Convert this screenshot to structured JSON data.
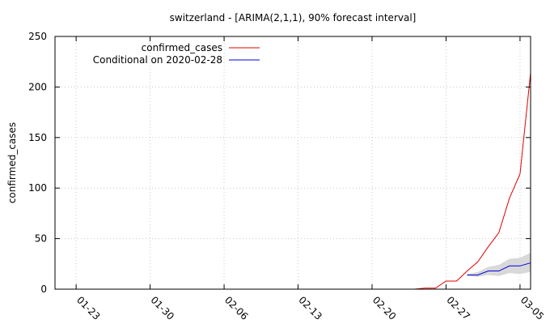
{
  "chart_data": {
    "type": "line",
    "title": "switzerland -  [ARIMA(2,1,1), 90% forecast interval]",
    "xlabel": "",
    "ylabel": "confirmed_cases",
    "x_start": "2020-01-21",
    "x_end": "2020-03-06",
    "ylim": [
      0,
      250
    ],
    "yticks": [
      0,
      50,
      100,
      150,
      200,
      250
    ],
    "xticks": [
      {
        "date": "2020-01-23",
        "label": "01-23"
      },
      {
        "date": "2020-01-30",
        "label": "01-30"
      },
      {
        "date": "2020-02-06",
        "label": "02-06"
      },
      {
        "date": "2020-02-13",
        "label": "02-13"
      },
      {
        "date": "2020-02-20",
        "label": "02-20"
      },
      {
        "date": "2020-02-27",
        "label": "02-27"
      },
      {
        "date": "2020-03-05",
        "label": "03-05"
      }
    ],
    "grid": true,
    "legend_position": "top-left",
    "series": [
      {
        "name": "confirmed_cases",
        "color": "#e00000",
        "points": [
          [
            "2020-02-24",
            0
          ],
          [
            "2020-02-25",
            1
          ],
          [
            "2020-02-26",
            1
          ],
          [
            "2020-02-27",
            8
          ],
          [
            "2020-02-28",
            8
          ],
          [
            "2020-02-29",
            18
          ],
          [
            "2020-03-01",
            27
          ],
          [
            "2020-03-02",
            42
          ],
          [
            "2020-03-03",
            56
          ],
          [
            "2020-03-04",
            90
          ],
          [
            "2020-03-05",
            114
          ],
          [
            "2020-03-06",
            214
          ]
        ]
      },
      {
        "name": "Conditional on 2020-02-28",
        "color": "#0000e0",
        "points": [
          [
            "2020-02-29",
            14
          ],
          [
            "2020-03-01",
            14
          ],
          [
            "2020-03-02",
            18
          ],
          [
            "2020-03-03",
            18
          ],
          [
            "2020-03-04",
            23
          ],
          [
            "2020-03-05",
            23
          ],
          [
            "2020-03-06",
            26
          ]
        ],
        "interval": {
          "color": "#d8d8d8",
          "lower": [
            13,
            12,
            14,
            13,
            16,
            15,
            17
          ],
          "upper": [
            15,
            17,
            22,
            24,
            30,
            31,
            36
          ]
        }
      }
    ]
  }
}
